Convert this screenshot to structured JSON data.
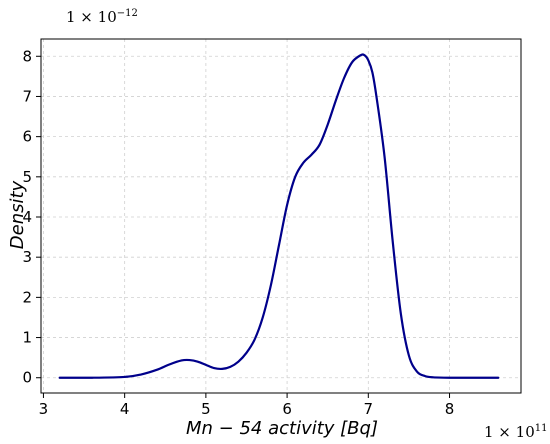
{
  "chart_data": {
    "type": "line",
    "title": "",
    "xlabel": "Mn − 54 activity [Bq]",
    "ylabel": "Density",
    "x_multiplier": {
      "base": "1 × 10",
      "exp": "11"
    },
    "y_multiplier": {
      "base": "1 × 10",
      "exp": "−12"
    },
    "xlim": [
      2.97,
      8.88
    ],
    "ylim": [
      -0.38,
      8.43
    ],
    "xticks": [
      3,
      4,
      5,
      6,
      7,
      8
    ],
    "yticks": [
      0,
      1,
      2,
      3,
      4,
      5,
      6,
      7,
      8
    ],
    "grid": true,
    "line_color": "#00008b",
    "series": [
      {
        "x": [
          3.2,
          3.6,
          4.0,
          4.2,
          4.4,
          4.55,
          4.7,
          4.8,
          4.9,
          5.0,
          5.1,
          5.2,
          5.3,
          5.4,
          5.5,
          5.6,
          5.7,
          5.8,
          5.9,
          6.0,
          6.1,
          6.2,
          6.3,
          6.4,
          6.5,
          6.6,
          6.7,
          6.8,
          6.9,
          6.95,
          7.0,
          7.05,
          7.1,
          7.2,
          7.3,
          7.4,
          7.5,
          7.6,
          7.7,
          7.8,
          8.0,
          8.3,
          8.6
        ],
        "y": [
          0.0,
          0.0,
          0.02,
          0.08,
          0.2,
          0.33,
          0.43,
          0.44,
          0.4,
          0.32,
          0.24,
          0.22,
          0.27,
          0.4,
          0.62,
          0.95,
          1.5,
          2.3,
          3.3,
          4.3,
          5.0,
          5.35,
          5.55,
          5.8,
          6.3,
          6.9,
          7.45,
          7.85,
          8.02,
          8.03,
          7.9,
          7.6,
          7.0,
          5.5,
          3.4,
          1.6,
          0.55,
          0.15,
          0.04,
          0.01,
          0.0,
          0.0,
          0.0
        ]
      }
    ]
  }
}
